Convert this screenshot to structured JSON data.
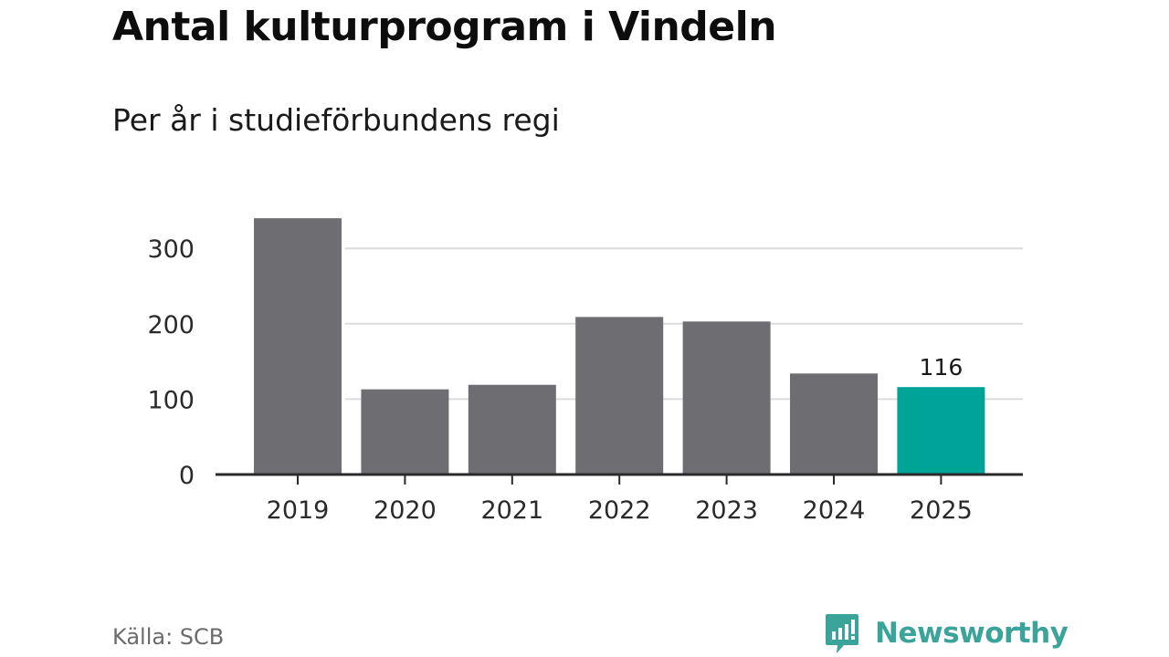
{
  "header": {
    "title": "Antal kulturprogram i Vindeln",
    "subtitle": "Per år i studieförbundens regi"
  },
  "footer": {
    "source": "Källa: SCB",
    "brand": "Newsworthy",
    "brand_icon": "newsworthy-logo-icon"
  },
  "colors": {
    "bar_default": "#6e6d72",
    "bar_highlight": "#00a398",
    "grid": "#dcdcdc",
    "axis": "#2a2a2a",
    "brand": "#3aa39a"
  },
  "chart_data": {
    "type": "bar",
    "categories": [
      "2019",
      "2020",
      "2021",
      "2022",
      "2023",
      "2024",
      "2025"
    ],
    "values": [
      340,
      113,
      119,
      209,
      203,
      134,
      116
    ],
    "highlight_index": 6,
    "data_labels": [
      {
        "index": 6,
        "text": "116"
      }
    ],
    "yticks": [
      0,
      100,
      200,
      300
    ],
    "ylim": [
      0,
      350
    ],
    "grid": true,
    "title": "Antal kulturprogram i Vindeln",
    "subtitle": "Per år i studieförbundens regi",
    "xlabel": "",
    "ylabel": ""
  }
}
